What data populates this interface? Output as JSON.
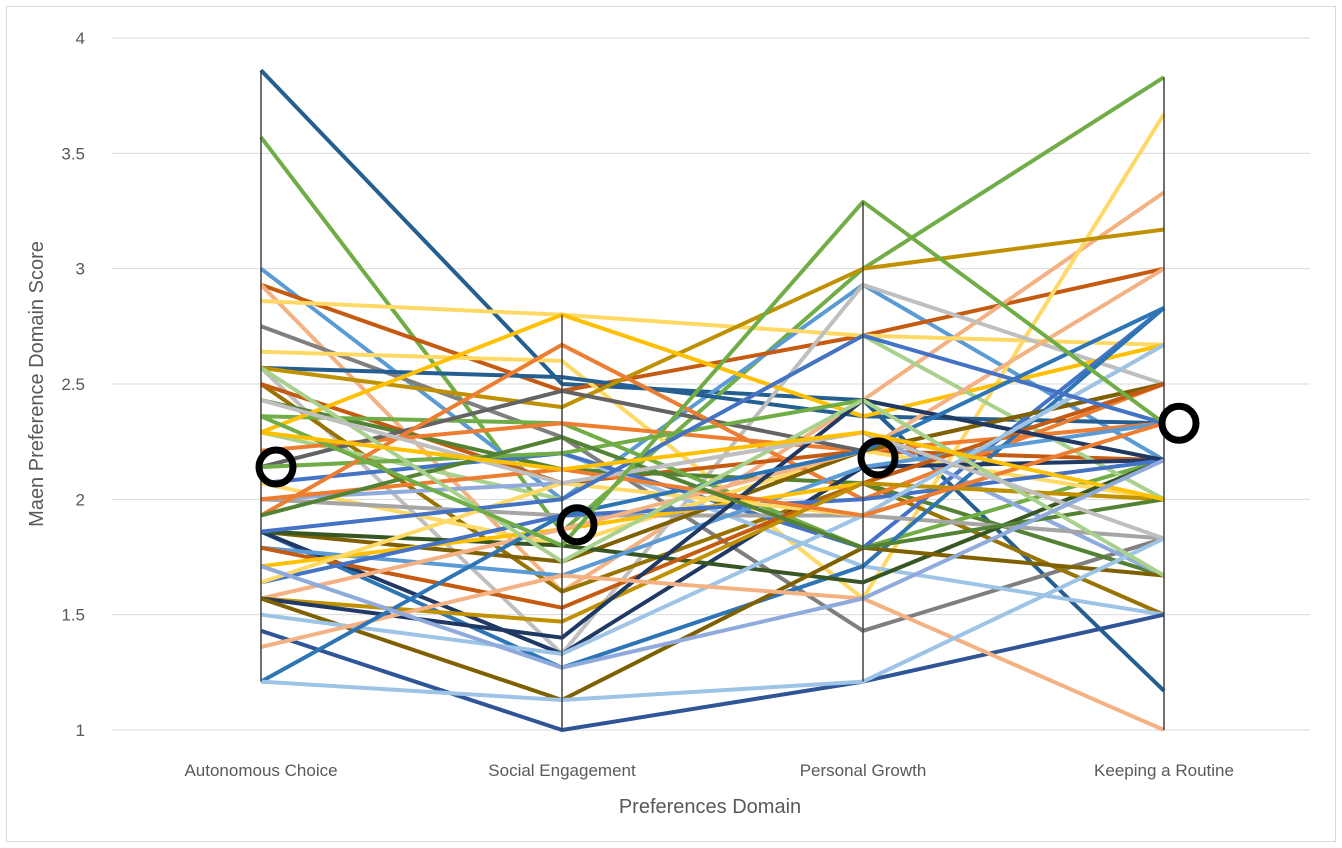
{
  "chart_data": {
    "type": "line",
    "xlabel": "Preferences Domain",
    "ylabel": "Maen Preference Domain Score",
    "categories": [
      "Autonomous Choice",
      "Social Engagement",
      "Personal Growth",
      "Keeping a Routine"
    ],
    "ylim": [
      1,
      4
    ],
    "yticks": [
      "1",
      "1.5",
      "2",
      "2.5",
      "3",
      "3.5",
      "4"
    ],
    "grid": true,
    "legend": "none",
    "means": [
      2.14,
      1.89,
      2.18,
      2.33
    ],
    "series": [
      {
        "color": "#255e91",
        "values": [
          3.86,
          2.5,
          2.43,
          1.17
        ]
      },
      {
        "color": "#70ad47",
        "values": [
          3.57,
          1.86,
          3.0,
          3.83
        ]
      },
      {
        "color": "#5b9bd5",
        "values": [
          3.0,
          2.0,
          2.93,
          2.17
        ]
      },
      {
        "color": "#c55a11",
        "values": [
          2.93,
          2.47,
          2.71,
          3.0
        ]
      },
      {
        "color": "#f4b183",
        "values": [
          2.93,
          1.6,
          2.43,
          3.33
        ]
      },
      {
        "color": "#ffd966",
        "values": [
          2.86,
          2.8,
          2.71,
          2.67
        ]
      },
      {
        "color": "#7f7f7f",
        "values": [
          2.75,
          2.27,
          1.43,
          1.83
        ]
      },
      {
        "color": "#ffd966",
        "values": [
          2.64,
          2.6,
          1.57,
          3.67
        ]
      },
      {
        "color": "#255e91",
        "values": [
          2.57,
          2.53,
          2.36,
          2.33
        ]
      },
      {
        "color": "#bf9000",
        "values": [
          2.57,
          2.4,
          3.0,
          3.17
        ]
      },
      {
        "color": "#bfbfbf",
        "values": [
          2.57,
          1.33,
          2.93,
          2.5
        ]
      },
      {
        "color": "#997300",
        "values": [
          2.5,
          1.6,
          2.07,
          1.5
        ]
      },
      {
        "color": "#c55a11",
        "values": [
          2.5,
          2.07,
          2.21,
          2.17
        ]
      },
      {
        "color": "#548235",
        "values": [
          2.43,
          2.13,
          2.07,
          1.67
        ]
      },
      {
        "color": "#70ad47",
        "values": [
          2.36,
          2.33,
          1.79,
          2.17
        ]
      },
      {
        "color": "#ffc000",
        "values": [
          2.29,
          2.8,
          2.36,
          2.67
        ]
      },
      {
        "color": "#a9d18e",
        "values": [
          2.29,
          2.0,
          2.71,
          2.0
        ]
      },
      {
        "color": "#ed7d31",
        "values": [
          2.21,
          2.33,
          2.21,
          2.33
        ]
      },
      {
        "color": "#636363",
        "values": [
          2.14,
          2.47,
          2.21,
          2.5
        ]
      },
      {
        "color": "#9dc3e6",
        "values": [
          2.14,
          2.2,
          1.71,
          1.5
        ]
      },
      {
        "color": "#4472c4",
        "values": [
          2.07,
          2.2,
          1.79,
          2.83
        ]
      },
      {
        "color": "#70ad47",
        "values": [
          2.14,
          2.2,
          2.43,
          2.17
        ]
      },
      {
        "color": "#ffd966",
        "values": [
          2.07,
          1.8,
          2.21,
          2.0
        ]
      },
      {
        "color": "#8faadc",
        "values": [
          2.0,
          2.07,
          2.29,
          1.67
        ]
      },
      {
        "color": "#a5a5a5",
        "values": [
          2.0,
          1.93,
          1.93,
          1.83
        ]
      },
      {
        "color": "#ed7d31",
        "values": [
          1.93,
          2.67,
          2.0,
          2.5
        ]
      },
      {
        "color": "#7f6000",
        "values": [
          1.86,
          1.73,
          2.21,
          2.5
        ]
      },
      {
        "color": "#2e75b6",
        "values": [
          1.86,
          1.27,
          1.71,
          2.83
        ]
      },
      {
        "color": "#203864",
        "values": [
          1.86,
          1.33,
          2.14,
          2.17
        ]
      },
      {
        "color": "#375623",
        "values": [
          1.86,
          1.8,
          1.64,
          2.17
        ]
      },
      {
        "color": "#5b9bd5",
        "values": [
          1.79,
          1.67,
          2.14,
          2.33
        ]
      },
      {
        "color": "#c55a11",
        "values": [
          1.79,
          1.53,
          2.07,
          2.5
        ]
      },
      {
        "color": "#ffc000",
        "values": [
          1.71,
          1.87,
          2.07,
          2.0
        ]
      },
      {
        "color": "#4472c4",
        "values": [
          1.64,
          1.93,
          2.0,
          2.17
        ]
      },
      {
        "color": "#ffd966",
        "values": [
          1.64,
          2.07,
          1.93,
          2.67
        ]
      },
      {
        "color": "#f4b183",
        "values": [
          1.57,
          1.87,
          2.21,
          3.0
        ]
      },
      {
        "color": "#bf9000",
        "values": [
          1.57,
          1.47,
          2.07,
          2.0
        ]
      },
      {
        "color": "#203864",
        "values": [
          1.57,
          1.4,
          2.43,
          2.17
        ]
      },
      {
        "color": "#7f6000",
        "values": [
          1.57,
          1.13,
          1.79,
          1.67
        ]
      },
      {
        "color": "#2f5597",
        "values": [
          1.43,
          1.0,
          1.21,
          1.5
        ]
      },
      {
        "color": "#9dc3e6",
        "values": [
          1.5,
          1.33,
          1.93,
          2.67
        ]
      },
      {
        "color": "#f4b183",
        "values": [
          1.36,
          1.67,
          1.57,
          1.0
        ]
      },
      {
        "color": "#2e75b6",
        "values": [
          1.21,
          1.93,
          2.21,
          2.83
        ]
      },
      {
        "color": "#9dc3e6",
        "values": [
          1.21,
          1.13,
          1.21,
          1.83
        ]
      },
      {
        "color": "#ed7d31",
        "values": [
          2.0,
          2.13,
          1.93,
          2.33
        ]
      },
      {
        "color": "#548235",
        "values": [
          1.93,
          2.27,
          1.79,
          2.0
        ]
      },
      {
        "color": "#a9d18e",
        "values": [
          2.57,
          1.73,
          2.43,
          1.67
        ]
      },
      {
        "color": "#bfbfbf",
        "values": [
          2.43,
          2.07,
          2.29,
          1.83
        ]
      },
      {
        "color": "#4472c4",
        "values": [
          1.86,
          2.0,
          2.71,
          2.33
        ]
      },
      {
        "color": "#70ad47",
        "values": [
          2.36,
          1.8,
          3.29,
          2.33
        ]
      },
      {
        "color": "#ffc000",
        "values": [
          2.29,
          2.13,
          2.29,
          2.0
        ]
      },
      {
        "color": "#8faadc",
        "values": [
          1.71,
          1.27,
          1.57,
          2.17
        ]
      }
    ]
  }
}
